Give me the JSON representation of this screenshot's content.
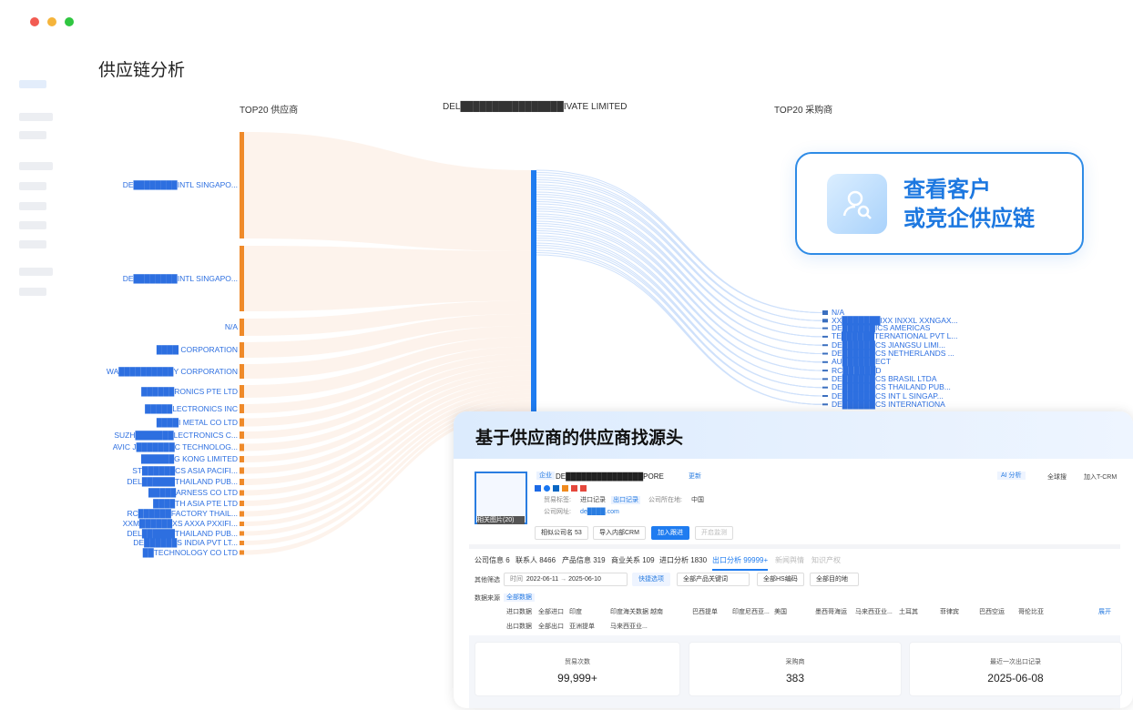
{
  "window": {
    "controls": [
      "#f25b52",
      "#f5b43b",
      "#2fc640"
    ]
  },
  "page_title": "供应链分析",
  "columns": {
    "left": "TOP20 供应商",
    "middle": "DEL████████████████IVATE LIMITED",
    "right": "TOP20 采购商"
  },
  "colors": {
    "supplier": "#ef8a2a",
    "center": "#1f7cf0",
    "buyer": "#3b6fbf",
    "link_left": "#fbe9dc",
    "link_right": "#cfe1fb",
    "label": "#2d6fe0"
  },
  "suppliers": [
    {
      "label": "DE████████INTL SINGAPO...",
      "value": 117
    },
    {
      "label": "DE████████INTL SINGAPO...",
      "value": 72
    },
    {
      "label": "N/A",
      "value": 19
    },
    {
      "label": "████ CORPORATION",
      "value": 17
    },
    {
      "label": "WA██████████Y CORPORATION",
      "value": 16
    },
    {
      "label": "██████RONICS PTE LTD",
      "value": 14
    },
    {
      "label": "█████LECTRONICS INC",
      "value": 10
    },
    {
      "label": "████I METAL CO LTD",
      "value": 9
    },
    {
      "label": "SUZH███████LECTRONICS C...",
      "value": 8
    },
    {
      "label": "AVIC J███████C TECHNOLOG...",
      "value": 8
    },
    {
      "label": "██████G KONG LIMITED",
      "value": 7
    },
    {
      "label": "ST██████CS ASIA PACIFI...",
      "value": 7
    },
    {
      "label": "DEL██████THAILAND PUB...",
      "value": 7
    },
    {
      "label": "█████ARNESS CO LTD",
      "value": 6
    },
    {
      "label": "████TH ASIA PTE LTD",
      "value": 6
    },
    {
      "label": "RC██████FACTORY THAIL...",
      "value": 6
    },
    {
      "label": "XXM██████XS AXXA PXXIFI...",
      "value": 5
    },
    {
      "label": "DEL██████THAILAND PUB...",
      "value": 5
    },
    {
      "label": "DE██████S INDIA PVT LT...",
      "value": 5
    },
    {
      "label": "██TECHNOLOGY CO LTD",
      "value": 5
    }
  ],
  "buyers": [
    {
      "label": "N/A"
    },
    {
      "label": "XX███████IXX INXXL XXNGAX..."
    },
    {
      "label": "DE██████ICS AMERICAS"
    },
    {
      "label": "TE██████TERNATIONAL PVT L..."
    },
    {
      "label": "DE██████CS JIANGSU LIMI..."
    },
    {
      "label": "DE██████CS NETHERLANDS ..."
    },
    {
      "label": "AU██████ECT"
    },
    {
      "label": "RC██████D"
    },
    {
      "label": "DE██████CS BRASIL LTDA"
    },
    {
      "label": "DE██████CS THAILAND PUB..."
    },
    {
      "label": "DE██████CS INT L SINGAP..."
    },
    {
      "label": "DE██████CS INTERNATIONA"
    }
  ],
  "callout": {
    "line1": "查看客户",
    "line2": "或竞企供应链",
    "icon": "user-search-icon"
  },
  "card": {
    "heading": "基于供应商的供应商找源头",
    "company": {
      "tag": "企业",
      "name": "DE███████████████PORE",
      "refresh": "更新",
      "trade_label": "贸易标签:",
      "import_tag": "进口记录",
      "export_tag": "出口记录",
      "location_label": "公司所在地:",
      "location": "中国",
      "website_label": "公司网址:",
      "website": "de████.com",
      "logo_caption": "相关图片(20)"
    },
    "actions": {
      "ai": "AI 分析",
      "ai_badge": "内测",
      "global": "全球搜",
      "crm": "加入T-CRM",
      "similar": "相似公司名 53",
      "import_crm": "导入内部CRM",
      "follow": "加入跟进",
      "monitor": "开启监测"
    },
    "tabs": [
      {
        "label": "公司信息 6"
      },
      {
        "label": "联系人 8466"
      },
      {
        "label": "产品信息 319"
      },
      {
        "label": "商业关系 109"
      },
      {
        "label": "进口分析 1830"
      },
      {
        "label": "出口分析 99999+",
        "active": true
      },
      {
        "label": "新闻舆情"
      },
      {
        "label": "知识产权"
      }
    ],
    "filters": {
      "label": "其他筛选",
      "time_label": "时间",
      "date_from": "2022-06-11",
      "date_to": "2025-06-10",
      "quick": "快捷选项",
      "product": "全部产品关键词",
      "hs": "全部HS编码",
      "dest": "全部目的地"
    },
    "source": {
      "label": "数据来源",
      "all": "全部数据",
      "row1": [
        "进口数据",
        "全部进口",
        "印度",
        "印度海关数据",
        "越南",
        "巴西提单",
        "印度尼西亚...",
        "美国",
        "墨西哥海运",
        "马来西亚业...",
        "土耳其",
        "菲律宾",
        "巴西空运",
        "哥伦比亚"
      ],
      "row2": [
        "出口数据",
        "全部出口",
        "亚洲提单",
        "马来西亚业..."
      ],
      "expand": "展开"
    },
    "stats": [
      {
        "label": "贸易次数",
        "value": "99,999+"
      },
      {
        "label": "采购商",
        "value": "383"
      },
      {
        "label": "最近一次出口记录",
        "value": "2025-06-08"
      }
    ]
  }
}
